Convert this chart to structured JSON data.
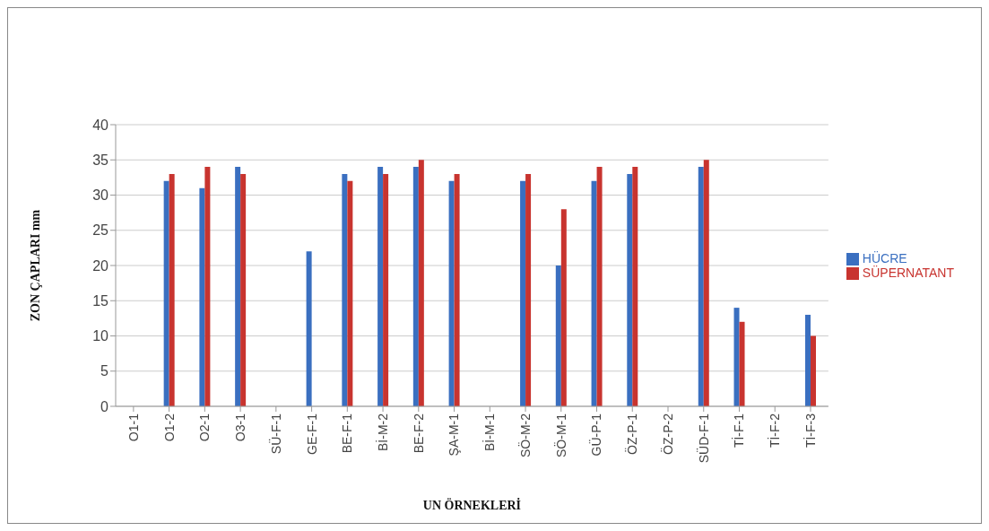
{
  "chart_data": {
    "type": "bar",
    "xlabel": "UN ÖRNEKLERİ",
    "ylabel": "ZON ÇAPLARI mm",
    "categories": [
      "O1-1",
      "O1-2",
      "O2-1",
      "O3-1",
      "SÜ-F-1",
      "GE-F-1",
      "BE-F-1",
      "Bİ-M-2",
      "BE-F-2",
      "ŞA-M-1",
      "Bİ-M-1",
      "SÖ-M-2",
      "SÖ-M-1",
      "GÜ-P-1",
      "ÖZ-P-1",
      "ÖZ-P-2",
      "SÜD-F-1",
      "Tİ-F-1",
      "Tİ-F-2",
      "Tİ-F-3"
    ],
    "series": [
      {
        "name": "HÜCRE",
        "color": "#3a6fc0",
        "values": [
          null,
          32,
          31,
          34,
          null,
          22,
          33,
          34,
          34,
          32,
          null,
          32,
          20,
          32,
          33,
          null,
          34,
          14,
          null,
          13
        ]
      },
      {
        "name": "SÜPERNATANT",
        "color": "#c8342f",
        "values": [
          null,
          33,
          34,
          33,
          null,
          null,
          32,
          33,
          35,
          33,
          null,
          33,
          28,
          34,
          34,
          null,
          35,
          12,
          null,
          10
        ]
      }
    ],
    "ylim": [
      0,
      40
    ],
    "yticks": [
      0,
      5,
      10,
      15,
      20,
      25,
      30,
      35,
      40
    ],
    "grid": "y",
    "legend": "right"
  }
}
